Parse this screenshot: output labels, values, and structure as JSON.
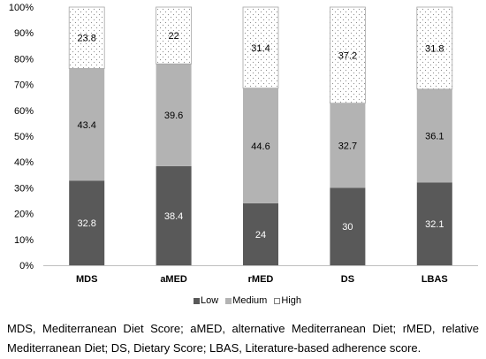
{
  "chart_data": {
    "type": "bar",
    "stacked": true,
    "categories": [
      "MDS",
      "aMED",
      "rMED",
      "DS",
      "LBAS"
    ],
    "series": [
      {
        "name": "Low",
        "values": [
          32.8,
          38.4,
          24,
          30,
          32.1
        ],
        "color": "#595959",
        "label_color": "#ffffff"
      },
      {
        "name": "Medium",
        "values": [
          43.4,
          39.6,
          44.6,
          32.7,
          36.1
        ],
        "color": "#b3b3b3",
        "label_color": "#000000"
      },
      {
        "name": "High",
        "values": [
          23.8,
          22,
          31.4,
          37.2,
          31.8
        ],
        "color": "#ffffff",
        "pattern": "dotted",
        "label_color": "#000000"
      }
    ],
    "title": "",
    "xlabel": "",
    "ylabel": "",
    "ylim": [
      0,
      100
    ],
    "y_ticks": [
      0,
      10,
      20,
      30,
      40,
      50,
      60,
      70,
      80,
      90,
      100
    ],
    "y_tick_labels": [
      "0%",
      "10%",
      "20%",
      "30%",
      "40%",
      "50%",
      "60%",
      "70%",
      "80%",
      "90%",
      "100%"
    ],
    "grid": false,
    "legend_position": "bottom"
  },
  "caption": "MDS, Mediterranean Diet Score; aMED, alternative Mediterranean Diet; rMED, relative Mediterranean Diet; DS, Dietary Score; LBAS, Literature-based adherence score."
}
